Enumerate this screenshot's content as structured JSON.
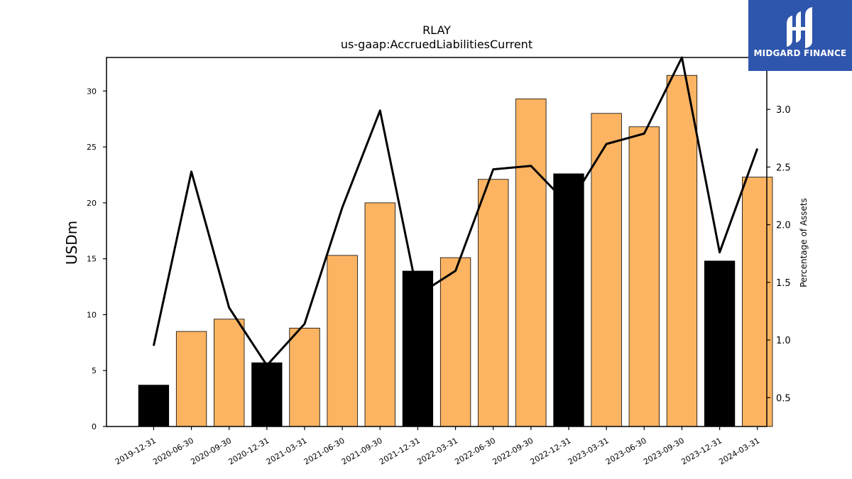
{
  "chart_data": {
    "type": "bar+line",
    "title": "RLAY",
    "subtitle": "us-gaap:AccruedLiabilitiesCurrent",
    "ylabel": "USDm",
    "y2label": "Percentage of Assets",
    "categories": [
      "2019-12-31",
      "2020-06-30",
      "2020-09-30",
      "2020-12-31",
      "2021-03-31",
      "2021-06-30",
      "2021-09-30",
      "2021-12-31",
      "2022-03-31",
      "2022-06-30",
      "2022-09-30",
      "2022-12-31",
      "2023-03-31",
      "2023-06-30",
      "2023-09-30",
      "2023-12-31",
      "2024-03-31"
    ],
    "bars": {
      "values": [
        3.7,
        8.5,
        9.6,
        5.7,
        8.8,
        15.3,
        20.0,
        13.9,
        15.1,
        22.1,
        29.3,
        22.6,
        28.0,
        26.8,
        31.4,
        14.8,
        22.3
      ],
      "colors": [
        "#000000",
        "#fdb462",
        "#fdb462",
        "#000000",
        "#fdb462",
        "#fdb462",
        "#fdb462",
        "#000000",
        "#fdb462",
        "#fdb462",
        "#fdb462",
        "#000000",
        "#fdb462",
        "#fdb462",
        "#fdb462",
        "#000000",
        "#fdb462"
      ]
    },
    "line": {
      "values": [
        0.95,
        2.46,
        1.28,
        0.78,
        1.14,
        2.15,
        2.99,
        1.39,
        1.6,
        2.48,
        2.51,
        2.17,
        2.7,
        2.79,
        3.45,
        1.76,
        2.66
      ],
      "color": "#000000"
    },
    "ylim": [
      0,
      33
    ],
    "y2lim": [
      0.25,
      3.45
    ],
    "yticks": [
      0,
      5,
      10,
      15,
      20,
      25,
      30
    ],
    "y2ticks": [
      0.5,
      1.0,
      1.5,
      2.0,
      2.5,
      3.0
    ]
  },
  "logo": {
    "text": "MIDGARD FINANCE"
  }
}
